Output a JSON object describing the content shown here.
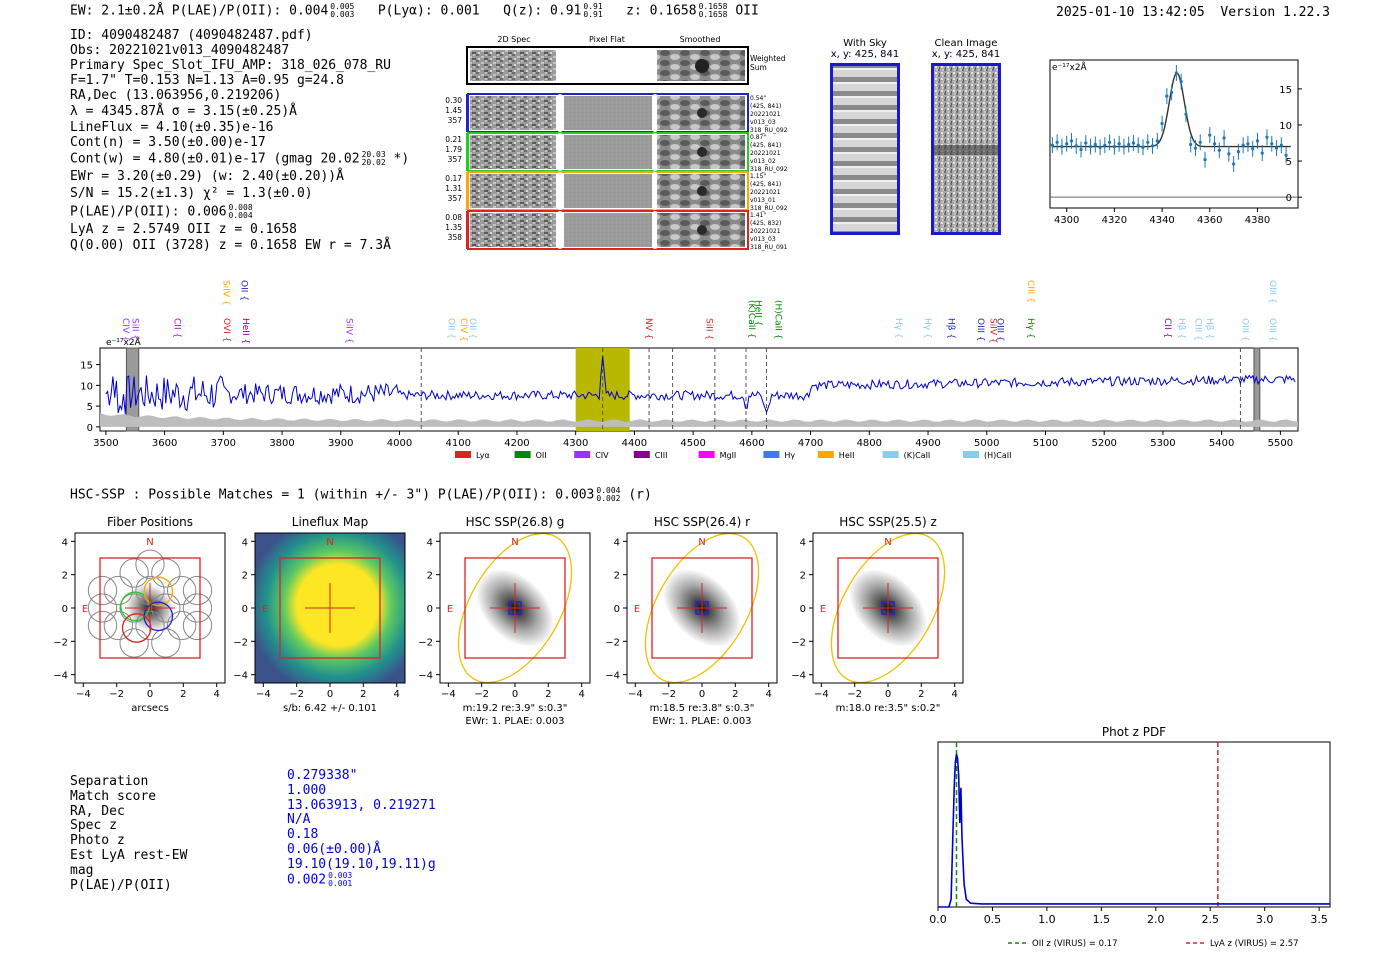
{
  "header": {
    "summary": "EW: 2.1±0.2Å  P(LAE)/P(OII): 0.004",
    "plae_sup": "0.005",
    "plae_sub": "0.003",
    "plya": "P(Lyα): 0.001",
    "qz": "Q(z): 0.91",
    "qz_sup": "0.91",
    "qz_sub": "0.91",
    "z": "z: 0.1658",
    "z_sup": "0.1658",
    "z_sub": "0.1658",
    "line_id": "OII",
    "timestamp": "2025-01-10 13:42:05",
    "version": "Version 1.22.3"
  },
  "info": {
    "id": "ID: 4090482487 (4090482487.pdf)",
    "obs": "Obs: 20221021v013_4090482487",
    "primary": "Primary Spec_Slot_IFU_AMP: 318_026_078_RU",
    "fit": "F=1.7\"  T=0.153  N=1.13  A=0.95  g=24.8",
    "radec": "RA,Dec (13.063956,0.219206)",
    "lambda": "λ = 4345.87Å  σ = 3.15(±0.25)Å",
    "lineflux": "LineFlux = 4.10(±0.35)e-16",
    "contn": "Cont(n) = 3.50(±0.00)e-17",
    "contw": "Cont(w) = 4.80(±0.01)e-17 (gmag 20.02",
    "contw_sup": "20.03",
    "contw_sub": "20.02",
    "contw_end": "*)",
    "ewr": "EWr = 3.20(±0.29) (w: 2.40(±0.20))Å",
    "sn": "S/N = 15.2(±1.3)  χ² = 1.3(±0.0)",
    "plae": "P(LAE)/P(OII): 0.006",
    "plae_sup": "0.008",
    "plae_sub": "0.004",
    "lyaz": "LyA z = 2.5749  OII z = 0.1658",
    "q": "Q(0.00) OII (3728) z = 0.1658  EW r = 7.3Å"
  },
  "cutouts": {
    "col_titles": [
      "2D Spec",
      "Pixel Flat",
      "Smoothed"
    ],
    "weighted_sum": [
      "Weighted",
      "Sum"
    ],
    "rows": [
      {
        "vals": [
          "0.30",
          "1.45",
          "357"
        ],
        "meta": [
          "0.54\"",
          "(425, 841)",
          "20221021",
          "v013_03",
          "318_RU_092"
        ],
        "color": "#2222cc"
      },
      {
        "vals": [
          "0.21",
          "1.79",
          "357"
        ],
        "meta": [
          "0.87\"",
          "(425, 841)",
          "20221021",
          "v013_02",
          "318_RU_092"
        ],
        "color": "#22cc22"
      },
      {
        "vals": [
          "0.17",
          "1.31",
          "357"
        ],
        "meta": [
          "1.15\"",
          "(425, 841)",
          "20221021",
          "v013_01",
          "318_RU_092"
        ],
        "color": "#ffa500"
      },
      {
        "vals": [
          "0.08",
          "1.35",
          "358"
        ],
        "meta": [
          "1.41\"",
          "(425, 832)",
          "20221021",
          "v013_03",
          "318_RU_091"
        ],
        "color": "#dd2222"
      }
    ],
    "with_sky": [
      "With Sky",
      "x, y: 425, 841"
    ],
    "clean_image": [
      "Clean Image",
      "x, y: 425, 841"
    ]
  },
  "zoom_chart": {
    "type": "scatter",
    "ylabel": "e⁻¹⁷x2Å",
    "xlim": [
      4293,
      4397
    ],
    "ylim": [
      -1.5,
      19
    ],
    "xticks": [
      4300,
      4320,
      4340,
      4360,
      4380
    ],
    "yticks": [
      0,
      5,
      10,
      15
    ],
    "x": [
      4294,
      4296,
      4298,
      4300,
      4302,
      4304,
      4306,
      4308,
      4310,
      4312,
      4314,
      4316,
      4318,
      4320,
      4322,
      4324,
      4326,
      4328,
      4330,
      4332,
      4334,
      4336,
      4338,
      4340,
      4342,
      4344,
      4346,
      4348,
      4350,
      4352,
      4354,
      4356,
      4358,
      4360,
      4362,
      4364,
      4366,
      4368,
      4370,
      4372,
      4374,
      4376,
      4378,
      4380,
      4382,
      4384,
      4386,
      4388,
      4390,
      4392
    ],
    "y": [
      7.2,
      7.6,
      7.0,
      7.4,
      7.8,
      7.1,
      6.6,
      7.5,
      7.0,
      7.3,
      6.9,
      7.2,
      7.6,
      7.0,
      7.4,
      7.0,
      7.3,
      7.5,
      7.2,
      6.9,
      7.6,
      7.1,
      7.8,
      10.2,
      14.0,
      14.5,
      17.2,
      16.0,
      11.5,
      7.3,
      6.8,
      7.6,
      5.2,
      8.6,
      7.4,
      6.5,
      8.2,
      6.0,
      4.6,
      6.3,
      7.2,
      7.4,
      6.7,
      7.8,
      6.1,
      8.3,
      7.4,
      6.8,
      7.2,
      5.8
    ],
    "model_center": 4346.2,
    "model_amp": 10.2,
    "model_sigma": 3.15,
    "model_cont": 7.0
  },
  "spectrum_chart": {
    "type": "line",
    "ylabel": "e⁻¹⁷x2Å",
    "xlim": [
      3490,
      5530
    ],
    "ylim": [
      -1,
      19
    ],
    "xticks": [
      3500,
      3600,
      3700,
      3800,
      3900,
      4000,
      4100,
      4200,
      4300,
      4400,
      4500,
      4600,
      4700,
      4800,
      4900,
      5000,
      5100,
      5200,
      5300,
      5400,
      5500
    ],
    "yticks": [
      0,
      5,
      10,
      15
    ],
    "highlight": [
      4300,
      4392
    ],
    "dashed": [
      4037,
      4346,
      4425,
      4465,
      4537,
      4590,
      4625,
      5432
    ],
    "masked": [
      3535,
      3556,
      5455,
      5465
    ],
    "line_labels": [
      {
        "x": 3524,
        "text": "CIV",
        "color": "#9933ff",
        "row": 2
      },
      {
        "x": 3540,
        "text": "SiII",
        "color": "#9933ff",
        "row": 2
      },
      {
        "x": 3612,
        "text": "CII",
        "color": "#cc00cc",
        "row": 2
      },
      {
        "x": 3696,
        "text": "OVI",
        "color": "#dd2222",
        "row": 2
      },
      {
        "x": 3695,
        "text": "SiIV",
        "color": "#ffa500",
        "row": 0
      },
      {
        "x": 3726,
        "text": "OII",
        "color": "#2222cc",
        "row": 0
      },
      {
        "x": 3728,
        "text": "HeII",
        "color": "#880088",
        "row": 2
      },
      {
        "x": 3905,
        "text": "SiIV",
        "color": "#9933ff",
        "row": 2
      },
      {
        "x": 4078,
        "text": "OII",
        "color": "#88ccee",
        "row": 2
      },
      {
        "x": 4100,
        "text": "CIV",
        "color": "#ffa500",
        "row": 2
      },
      {
        "x": 4115,
        "text": "OII",
        "color": "#88ccee",
        "row": 2
      },
      {
        "x": 4415,
        "text": "NV",
        "color": "#dd2222",
        "row": 2
      },
      {
        "x": 4518,
        "text": "SiII",
        "color": "#dd2222",
        "row": 2
      },
      {
        "x": 4590,
        "text": "(K)CaII",
        "color": "#008800",
        "row": 1
      },
      {
        "x": 4601,
        "text": "HeII",
        "color": "#008800",
        "row": 1
      },
      {
        "x": 4635,
        "text": "(H)CaII",
        "color": "#008800",
        "row": 1
      },
      {
        "x": 4840,
        "text": "Hγ",
        "color": "#88ccee",
        "row": 2
      },
      {
        "x": 4890,
        "text": "Hγ",
        "color": "#88ccee",
        "row": 2
      },
      {
        "x": 4930,
        "text": "Hβ",
        "color": "#2222cc",
        "row": 2
      },
      {
        "x": 4980,
        "text": "OIII",
        "color": "#2222cc",
        "row": 2
      },
      {
        "x": 5001,
        "text": "SiIV",
        "color": "#dd2222",
        "row": 2
      },
      {
        "x": 5013,
        "text": "OIII",
        "color": "#2222cc",
        "row": 2
      },
      {
        "x": 5065,
        "text": "CIII",
        "color": "#ffa500",
        "row": 0
      },
      {
        "x": 5065,
        "text": "Hγ",
        "color": "#008800",
        "row": 2
      },
      {
        "x": 5298,
        "text": "CII",
        "color": "#880088",
        "row": 2
      },
      {
        "x": 5322,
        "text": "Hβ",
        "color": "#88ccee",
        "row": 2
      },
      {
        "x": 5350,
        "text": "CIII",
        "color": "#88ccee",
        "row": 2
      },
      {
        "x": 5370,
        "text": "Hβ",
        "color": "#88ccee",
        "row": 2
      },
      {
        "x": 5430,
        "text": "OIII",
        "color": "#88ccee",
        "row": 2
      },
      {
        "x": 5477,
        "text": "OIII",
        "color": "#88ccee",
        "row": 0
      },
      {
        "x": 5477,
        "text": "OIII",
        "color": "#88ccee",
        "row": 2
      }
    ],
    "legend": [
      {
        "label": "Lyα",
        "color": "#dd2222"
      },
      {
        "label": "OII",
        "color": "#008800"
      },
      {
        "label": "CIV",
        "color": "#9933ff"
      },
      {
        "label": "CIII",
        "color": "#880088"
      },
      {
        "label": "MgII",
        "color": "#ff00ff"
      },
      {
        "label": "Hγ",
        "color": "#4477ee"
      },
      {
        "label": "HeII",
        "color": "#ffa500"
      },
      {
        "label": "(K)CaII",
        "color": "#88ccee"
      },
      {
        "label": "(H)CaII",
        "color": "#88ccee"
      }
    ]
  },
  "hsc": {
    "headline": "HSC-SSP : Possible Matches = 1 (within +/- 3\")  P(LAE)/P(OII): 0.003",
    "sup": "0.004",
    "sub": "0.002",
    "band": "(r)",
    "panels": [
      {
        "title": "Fiber Positions",
        "caption": "arcsecs",
        "caption2": ""
      },
      {
        "title": "Lineflux Map",
        "caption": "s/b: 6.42 +/- 0.101",
        "caption2": ""
      },
      {
        "title": "HSC SSP(26.8) g",
        "caption": "m:19.2  re:3.9\"  s:0.3\"",
        "caption2": "EWr: 1. PLAE: 0.003"
      },
      {
        "title": "HSC SSP(26.4) r",
        "caption": "m:18.5  re:3.8\"  s:0.3\"",
        "caption2": "EWr: 1. PLAE: 0.003"
      },
      {
        "title": "HSC SSP(25.5) z",
        "caption": "m:18.0  re:3.5\"  s:0.2\"",
        "caption2": ""
      }
    ],
    "ticks": [
      "−4",
      "−2",
      "0",
      "2",
      "4"
    ],
    "north": "N",
    "east": "E"
  },
  "match": {
    "labels": [
      "Separation",
      "Match score",
      "RA, Dec",
      "Spec z",
      "Photo z",
      "Est LyA rest-EW",
      "mag",
      "P(LAE)/P(OII)"
    ],
    "values": [
      "0.279338\"",
      "1.000",
      "13.063913, 0.219271",
      "N/A",
      "0.18",
      "0.06(±0.00)Å",
      "19.10(19.10,19.11)g",
      "0.002"
    ],
    "plae_sup": "0.003",
    "plae_sub": "0.001"
  },
  "photz_chart": {
    "type": "line",
    "title": "Phot z PDF",
    "xlim": [
      0,
      3.6
    ],
    "ylim": [
      0,
      1.08
    ],
    "xticks": [
      "0.0",
      "0.5",
      "1.0",
      "1.5",
      "2.0",
      "2.5",
      "3.0",
      "3.5"
    ],
    "x": [
      0,
      0.1,
      0.12,
      0.14,
      0.15,
      0.16,
      0.17,
      0.18,
      0.19,
      0.2,
      0.21,
      0.22,
      0.24,
      0.26,
      0.3,
      0.4,
      0.6,
      1.0,
      2.0,
      3.0,
      3.6
    ],
    "y": [
      0,
      0.0,
      0.05,
      0.55,
      0.8,
      0.95,
      1.0,
      0.97,
      0.86,
      0.55,
      0.78,
      0.45,
      0.15,
      0.05,
      0.025,
      0.02,
      0.02,
      0.02,
      0.02,
      0.02,
      0.02
    ],
    "oii_z": 0.17,
    "lya_z": 2.57,
    "legend_oii": "OII z (VIRUS) = 0.17",
    "legend_lya": "LyA z (VIRUS) = 2.57"
  }
}
